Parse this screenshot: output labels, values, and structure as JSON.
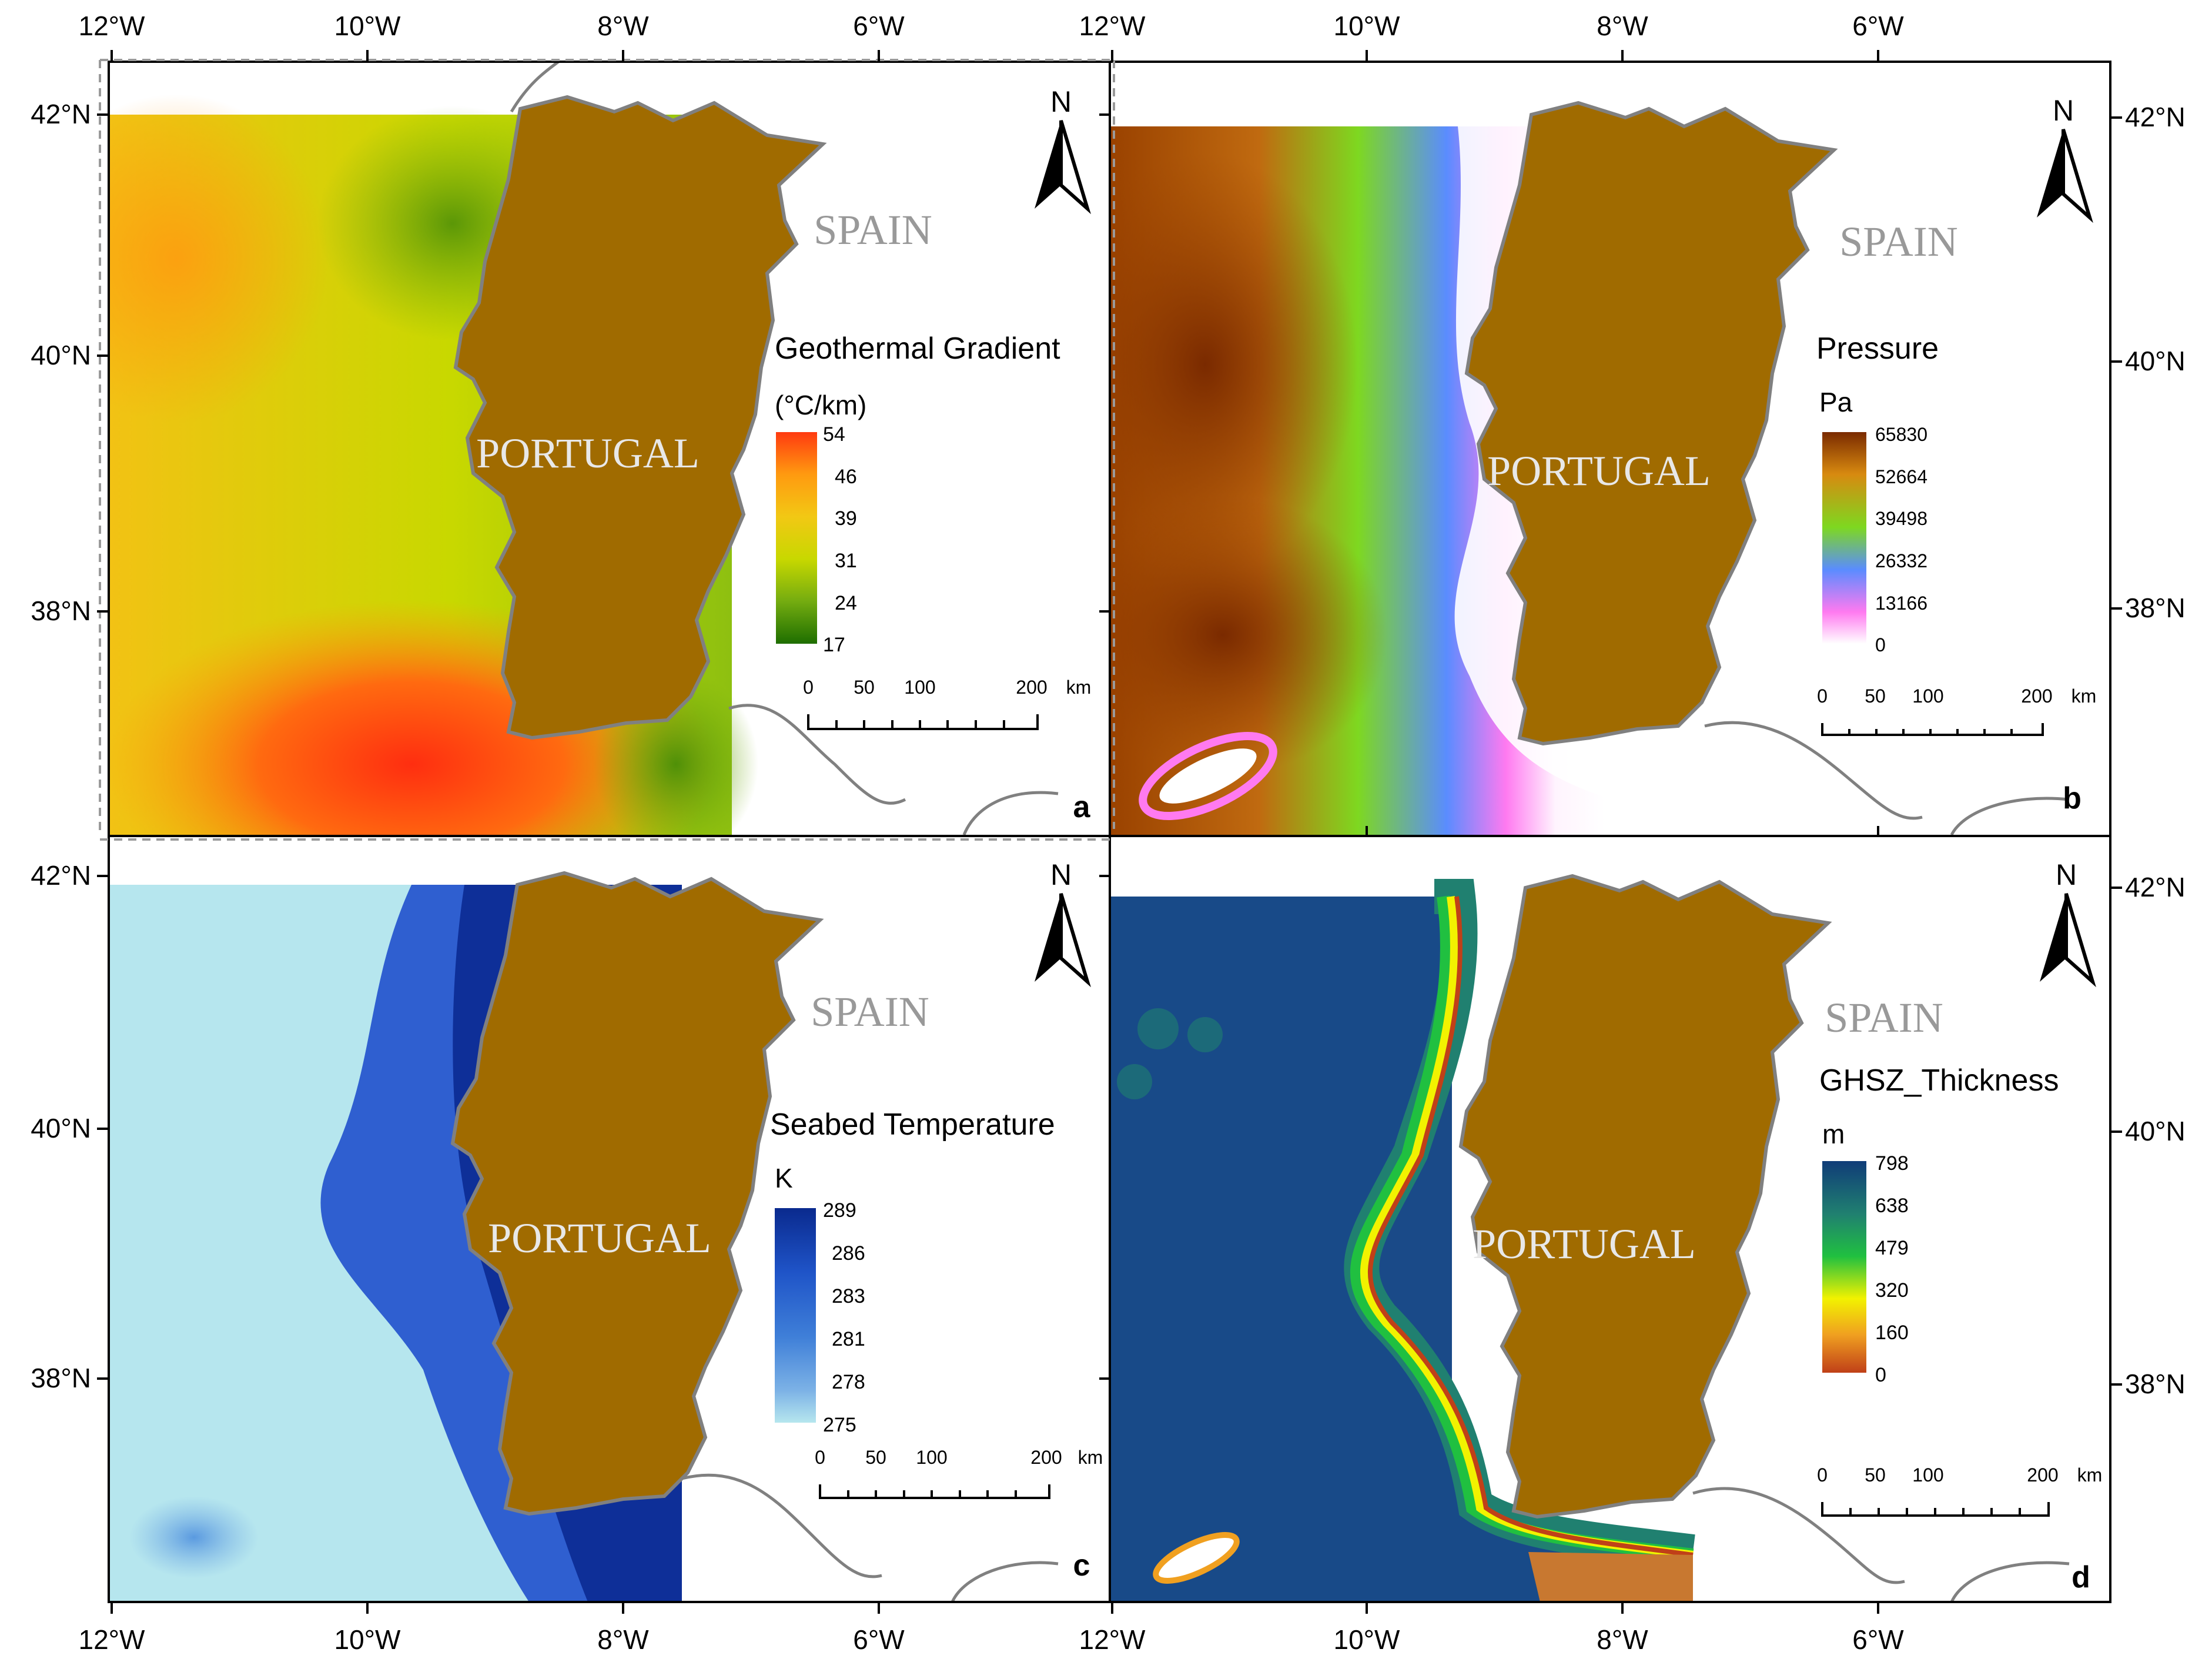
{
  "axes": {
    "top_lon_left": [
      "12°W",
      "10°W",
      "8°W",
      "6°W"
    ],
    "top_lon_right": [
      "12°W",
      "10°W",
      "8°W",
      "6°W"
    ],
    "bottom_lon_left": [
      "12°W",
      "10°W",
      "8°W",
      "6°W"
    ],
    "bottom_lon_right": [
      "12°W",
      "10°W",
      "8°W",
      "6°W"
    ],
    "lat_left_top": [
      "42°N",
      "40°N",
      "38°N"
    ],
    "lat_left_bottom": [
      "42°N",
      "40°N",
      "38°N"
    ],
    "lat_right_top": [
      "42°N",
      "40°N",
      "38°N"
    ],
    "lat_right_bottom": [
      "42°N",
      "40°N",
      "38°N"
    ]
  },
  "common": {
    "country_portugal": "PORTUGAL",
    "country_spain": "SPAIN",
    "north_arrow_label": "N",
    "scale_ticks": [
      "0",
      "50",
      "100",
      "200"
    ],
    "scale_unit": "km"
  },
  "panels": [
    {
      "letter": "a",
      "legend_title": "Geothermal Gradient",
      "legend_unit": "(°C/km)",
      "legend_values": [
        "54",
        "46",
        "39",
        "31",
        "24",
        "17"
      ],
      "colors": [
        "#ff3a10",
        "#ff9a10",
        "#f2c814",
        "#c8d800",
        "#74ac10",
        "#1e6e00"
      ]
    },
    {
      "letter": "b",
      "legend_title": "Pressure",
      "legend_unit": "Pa",
      "legend_values": [
        "65830",
        "52664",
        "39498",
        "26332",
        "13166",
        "0"
      ],
      "colors": [
        "#7a2a00",
        "#d88a10",
        "#7ed820",
        "#5a8cff",
        "#ff7af0",
        "#ffffff"
      ]
    },
    {
      "letter": "c",
      "legend_title": "Seabed Temperature",
      "legend_unit": "K",
      "legend_values": [
        "289",
        "286",
        "283",
        "281",
        "278",
        "275"
      ],
      "colors": [
        "#0a2a8e",
        "#1f54c8",
        "#3f7fd8",
        "#7cb2e6",
        "#b6e6ee"
      ]
    },
    {
      "letter": "d",
      "legend_title": "GHSZ_Thickness",
      "legend_unit": "m",
      "legend_values": [
        "798",
        "638",
        "479",
        "320",
        "160",
        "0"
      ],
      "colors": [
        "#103c78",
        "#208070",
        "#20c040",
        "#f2f200",
        "#f0a020",
        "#c04018"
      ]
    }
  ],
  "land_color": "#a06b00",
  "coast_color": "#808080"
}
